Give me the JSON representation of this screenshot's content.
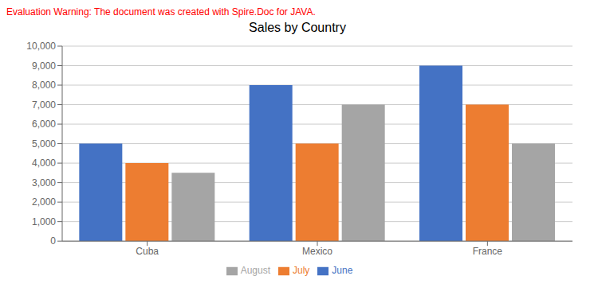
{
  "chart_data": {
    "type": "bar",
    "title": "Sales by Country",
    "categories": [
      "Cuba",
      "Mexico",
      "France"
    ],
    "series": [
      {
        "name": "June",
        "color": "#4472C4",
        "values": [
          5000,
          8000,
          9000
        ]
      },
      {
        "name": "July",
        "color": "#ED7D31",
        "values": [
          4000,
          5000,
          7000
        ]
      },
      {
        "name": "August",
        "color": "#A5A5A5",
        "values": [
          3500,
          7000,
          5000
        ]
      }
    ],
    "ylim": [
      0,
      10000
    ],
    "yticks": [
      0,
      {
        "value": 1000,
        "label": "1,000"
      },
      {
        "value": 2000,
        "label": "2,000"
      },
      {
        "value": 3000,
        "label": "3,000"
      },
      {
        "value": 4000,
        "label": "4,000"
      },
      {
        "value": 5000,
        "label": "5,000"
      },
      {
        "value": 6000,
        "label": "6,000"
      },
      {
        "value": 7000,
        "label": "7,000"
      },
      {
        "value": 8000,
        "label": "8,000"
      },
      {
        "value": 9000,
        "label": "9,000"
      },
      {
        "value": 10000,
        "label": "10,000"
      }
    ],
    "grid": true,
    "legend": "bottom",
    "annotations": [
      {
        "text": "Evaluation Warning: The document was created with Spire.Doc for JAVA.",
        "color": "#FF0000"
      }
    ]
  }
}
